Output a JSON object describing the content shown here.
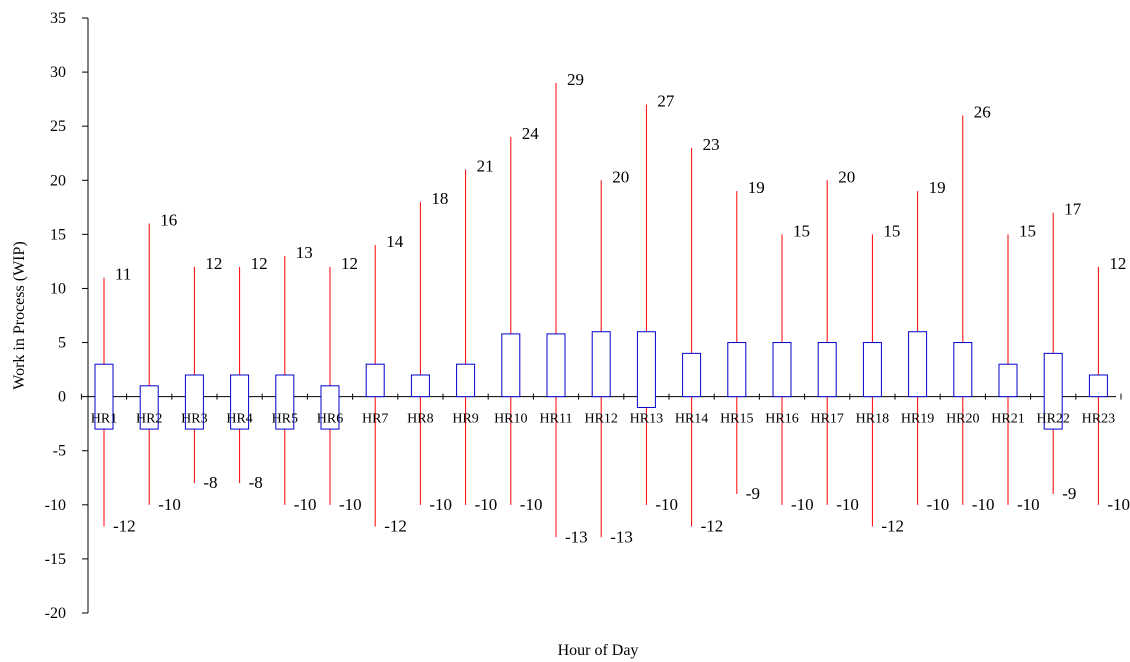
{
  "chart_data": {
    "type": "box",
    "xlabel": "Hour of Day",
    "ylabel": "Work in Process (WIP)",
    "ylim": [
      -20,
      35
    ],
    "yticks": [
      "35",
      "30",
      "25",
      "20",
      "15",
      "10",
      "5",
      "0",
      "-5",
      "-10",
      "-15",
      "-20"
    ],
    "grid": false,
    "colors": {
      "whisker": "#ff0000",
      "box": "#0000cc",
      "axis": "#000000"
    },
    "categories": [
      "HR1",
      "HR2",
      "HR3",
      "HR4",
      "HR5",
      "HR6",
      "HR7",
      "HR8",
      "HR9",
      "HR10",
      "HR11",
      "HR12",
      "HR13",
      "HR14",
      "HR15",
      "HR16",
      "HR17",
      "HR18",
      "HR19",
      "HR20",
      "HR21",
      "HR22",
      "HR23"
    ],
    "max": [
      11,
      16,
      12,
      12,
      13,
      12,
      14,
      18,
      21,
      24,
      29,
      20,
      27,
      23,
      19,
      15,
      20,
      15,
      19,
      26,
      15,
      17,
      12
    ],
    "min": [
      -12,
      -10,
      -8,
      -8,
      -10,
      -10,
      -12,
      -10,
      -10,
      -10,
      -13,
      -13,
      -10,
      -12,
      -9,
      -10,
      -10,
      -12,
      -10,
      -10,
      -10,
      -9,
      -10
    ],
    "q3": [
      3,
      1,
      2,
      2,
      2,
      1,
      3,
      2,
      3,
      5.8,
      5.8,
      6,
      6,
      4,
      5,
      5,
      5,
      5,
      6,
      5,
      3,
      4,
      2
    ],
    "q1": [
      -3,
      -3,
      -3,
      -3,
      -3,
      -3,
      0,
      0,
      0,
      0,
      0,
      0,
      -1,
      0,
      0,
      0,
      0,
      0,
      0,
      0,
      0,
      -3,
      0
    ],
    "max_labels": [
      "11",
      "16",
      "12",
      "12",
      "13",
      "12",
      "14",
      "18",
      "21",
      "24",
      "29",
      "20",
      "27",
      "23",
      "19",
      "15",
      "20",
      "15",
      "19",
      "26",
      "15",
      "17",
      "12"
    ],
    "min_labels": [
      "-12",
      "-10",
      "-8",
      "-8",
      "-10",
      "-10",
      "-12",
      "-10",
      "-10",
      "-10",
      "-13",
      "-13",
      "-10",
      "-12",
      "-9",
      "-10",
      "-10",
      "-12",
      "-10",
      "-10",
      "-10",
      "-9",
      "-10"
    ]
  }
}
